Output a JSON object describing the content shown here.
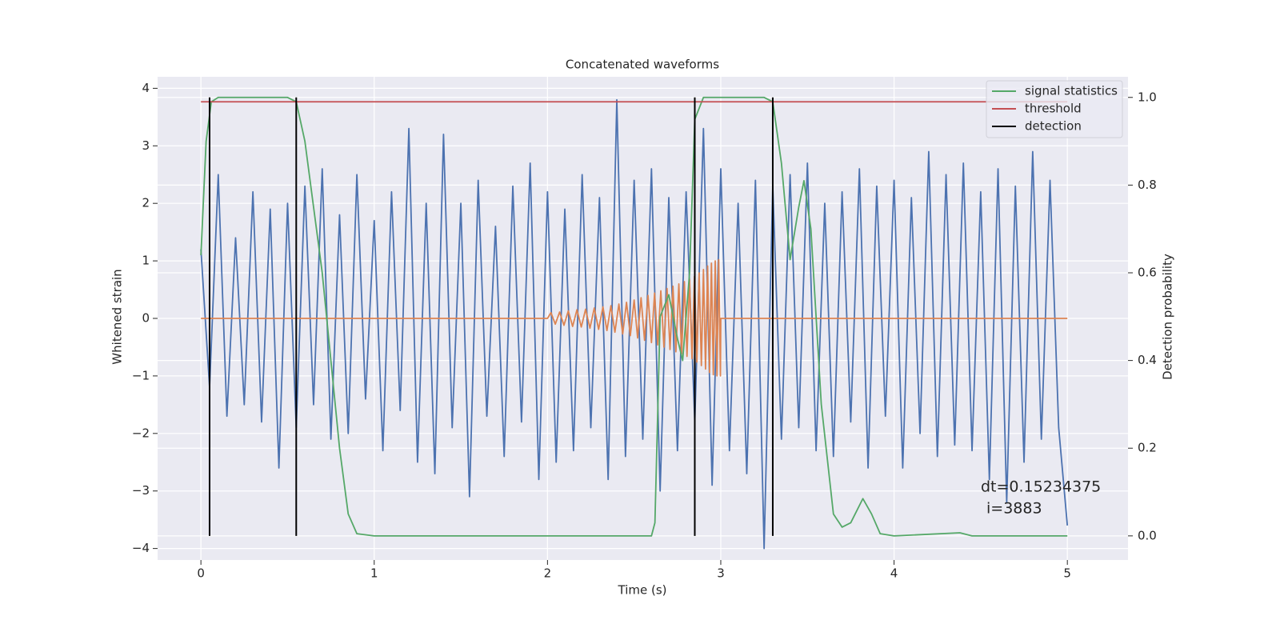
{
  "chart_data": {
    "type": "line",
    "title": "Concatenated waveforms",
    "xlabel": "Time (s)",
    "ylabel": "Whitened strain",
    "y2label": "Detection probability",
    "xlim": [
      -0.25,
      5.35
    ],
    "xticks": [
      0,
      1,
      2,
      3,
      4,
      5
    ],
    "ylim": [
      -4.2,
      4.2
    ],
    "yticks": [
      {
        "value": -4,
        "label": "−4"
      },
      {
        "value": -3,
        "label": "−3"
      },
      {
        "value": -2,
        "label": "−2"
      },
      {
        "value": -1,
        "label": "−1"
      },
      0,
      1,
      2,
      3,
      4
    ],
    "y2lim": [
      -0.055,
      1.047
    ],
    "y2ticks": [
      {
        "value": 0,
        "label": "0.0"
      },
      0.2,
      0.4,
      0.6,
      0.8,
      {
        "value": 1,
        "label": "1.0"
      }
    ],
    "grid": true,
    "legend": "upper right",
    "annotations": [
      "dt=0.15234375",
      "i=3883"
    ],
    "series": [
      {
        "color": "#4c72b0",
        "x": [
          0,
          0.05,
          0.1,
          0.15,
          0.2,
          0.25,
          0.3,
          0.35,
          0.4,
          0.45,
          0.5,
          0.55,
          0.6,
          0.65,
          0.7,
          0.75,
          0.8,
          0.85,
          0.9,
          0.95,
          1,
          1.05,
          1.1,
          1.15,
          1.2,
          1.25,
          1.3,
          1.35,
          1.4,
          1.45,
          1.5,
          1.55,
          1.6,
          1.65,
          1.7,
          1.75,
          1.8,
          1.85,
          1.9,
          1.95,
          2,
          2.05,
          2.1,
          2.15,
          2.2,
          2.25,
          2.3,
          2.35,
          2.4,
          2.45,
          2.5,
          2.55,
          2.6,
          2.65,
          2.7,
          2.75,
          2.8,
          2.85,
          2.9,
          2.95,
          3,
          3.05,
          3.1,
          3.15,
          3.2,
          3.25,
          3.3,
          3.35,
          3.4,
          3.45,
          3.5,
          3.55,
          3.6,
          3.65,
          3.7,
          3.75,
          3.8,
          3.85,
          3.9,
          3.95,
          4,
          4.05,
          4.1,
          4.15,
          4.2,
          4.25,
          4.3,
          4.35,
          4.4,
          4.45,
          4.5,
          4.55,
          4.6,
          4.65,
          4.7,
          4.75,
          4.8,
          4.85,
          4.9,
          4.95,
          5
        ],
        "values": [
          1.2,
          -1.2,
          2.5,
          -1.7,
          1.4,
          -1.5,
          2.2,
          -1.8,
          1.9,
          -2.6,
          2.0,
          -1.9,
          2.3,
          -1.5,
          2.6,
          -2.1,
          1.8,
          -2.0,
          2.5,
          -1.4,
          1.7,
          -2.3,
          2.2,
          -1.6,
          3.3,
          -2.5,
          2.0,
          -2.7,
          3.2,
          -1.9,
          2.0,
          -3.1,
          2.4,
          -1.7,
          1.6,
          -2.4,
          2.3,
          -1.8,
          2.7,
          -2.8,
          2.2,
          -2.5,
          1.9,
          -2.3,
          2.5,
          -1.9,
          2.1,
          -2.8,
          3.8,
          -2.4,
          2.4,
          -2.1,
          2.6,
          -3.0,
          2.1,
          -2.3,
          2.2,
          -1.8,
          3.3,
          -2.9,
          2.6,
          -2.3,
          2.0,
          -2.7,
          2.4,
          -4.0,
          2.3,
          -2.1,
          2.5,
          -1.9,
          2.7,
          -2.3,
          2.0,
          -2.4,
          2.2,
          -1.8,
          2.6,
          -2.6,
          2.3,
          -1.7,
          2.4,
          -2.6,
          2.1,
          -2.0,
          2.9,
          -2.4,
          2.5,
          -2.2,
          2.7,
          -2.3,
          2.2,
          -2.8,
          2.6,
          -3.2,
          2.3,
          -2.5,
          2.9,
          -2.1,
          2.4,
          -1.9,
          -3.6
        ]
      },
      {
        "color": "#dd8452",
        "x": [
          0,
          2.0,
          2.02,
          2.045,
          2.07,
          2.095,
          2.12,
          2.145,
          2.17,
          2.195,
          2.22,
          2.245,
          2.27,
          2.295,
          2.32,
          2.343,
          2.366,
          2.389,
          2.412,
          2.434,
          2.456,
          2.478,
          2.5,
          2.52,
          2.54,
          2.56,
          2.58,
          2.6,
          2.618,
          2.636,
          2.654,
          2.672,
          2.69,
          2.707,
          2.724,
          2.741,
          2.758,
          2.774,
          2.79,
          2.805,
          2.82,
          2.834,
          2.848,
          2.862,
          2.875,
          2.888,
          2.9,
          2.912,
          2.924,
          2.935,
          2.946,
          2.957,
          2.968,
          2.978,
          2.988,
          2.998,
          3.0,
          5.0
        ],
        "values": [
          0,
          0,
          0.1,
          -0.1,
          0.11,
          -0.12,
          0.13,
          -0.14,
          0.15,
          -0.15,
          0.16,
          -0.17,
          0.18,
          -0.19,
          0.2,
          -0.21,
          0.22,
          -0.24,
          0.25,
          -0.27,
          0.28,
          -0.3,
          0.32,
          -0.34,
          0.36,
          -0.38,
          0.4,
          -0.42,
          0.44,
          -0.46,
          0.48,
          -0.5,
          0.52,
          -0.54,
          0.56,
          -0.58,
          0.6,
          -0.62,
          0.64,
          -0.66,
          0.68,
          -0.7,
          0.73,
          -0.76,
          0.79,
          -0.82,
          0.85,
          -0.88,
          0.91,
          -0.94,
          0.96,
          -0.98,
          1.0,
          -1.0,
          1.02,
          -1.0,
          0,
          0
        ]
      },
      {
        "name": "signal statistics",
        "color": "#55a868",
        "axis": "y2",
        "x": [
          0,
          0.03,
          0.06,
          0.1,
          0.5,
          0.55,
          0.6,
          0.7,
          0.8,
          0.85,
          0.9,
          1,
          2.6,
          2.62,
          2.65,
          2.7,
          2.75,
          2.78,
          2.82,
          2.85,
          2.9,
          3.25,
          3.3,
          3.35,
          3.4,
          3.45,
          3.48,
          3.52,
          3.58,
          3.65,
          3.7,
          3.75,
          3.82,
          3.87,
          3.92,
          4.0,
          4.38,
          4.45,
          5
        ],
        "values": [
          0.64,
          0.9,
          0.99,
          1.0,
          1.0,
          0.99,
          0.9,
          0.6,
          0.2,
          0.05,
          0.005,
          0,
          0,
          0.03,
          0.5,
          0.55,
          0.45,
          0.4,
          0.6,
          0.95,
          1.0,
          1.0,
          0.99,
          0.85,
          0.63,
          0.75,
          0.81,
          0.7,
          0.3,
          0.05,
          0.02,
          0.03,
          0.085,
          0.05,
          0.005,
          0,
          0.007,
          0,
          0
        ]
      },
      {
        "name": "threshold",
        "color": "#c44e52",
        "axis": "y2",
        "x": [
          0,
          5
        ],
        "values": [
          0.99,
          0.99
        ]
      },
      {
        "name": "detection",
        "color": "#000000",
        "axis": "y2",
        "x": [
          0.05,
          0.55,
          2.85,
          3.3
        ]
      }
    ]
  }
}
